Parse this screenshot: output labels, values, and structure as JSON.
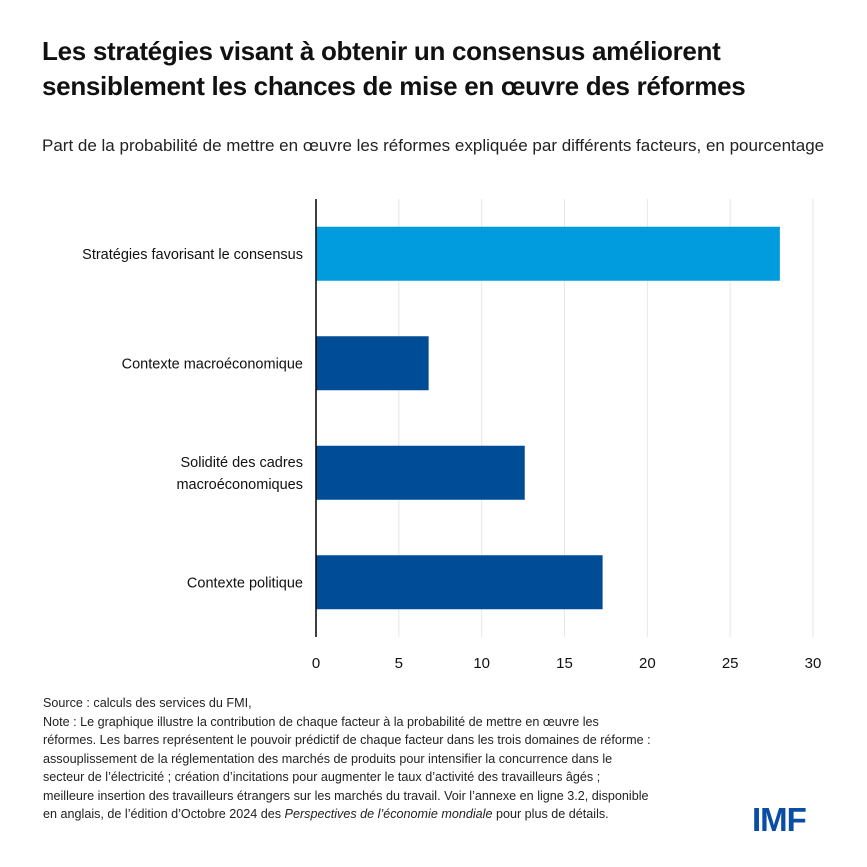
{
  "header": {
    "title": "Les stratégies visant à obtenir un consensus améliorent sensiblement les chances de mise en œuvre des réformes",
    "subtitle": "Part de la probabilité de mettre en œuvre les réformes expliquée par différents facteurs, en pourcentage"
  },
  "chart_data": {
    "type": "bar",
    "orientation": "horizontal",
    "title": "Les stratégies visant à obtenir un consensus améliorent sensiblement les chances de mise en œuvre des réformes",
    "subtitle": "Part de la probabilité de mettre en œuvre les réformes expliquée par différents facteurs, en pourcentage",
    "categories": [
      "Stratégies favorisant le consensus",
      "Contexte macroéconomique",
      "Solidité des cadres macroéconomiques",
      "Contexte politique"
    ],
    "category_lines": [
      [
        "Stratégies favorisant le consensus"
      ],
      [
        "Contexte macroéconomique"
      ],
      [
        "Solidité des cadres",
        "macroéconomiques"
      ],
      [
        "Contexte politique"
      ]
    ],
    "values": [
      28.0,
      6.8,
      12.6,
      17.3
    ],
    "colors": [
      "#009cde",
      "#004c97",
      "#004c97",
      "#004c97"
    ],
    "xlabel": "",
    "ylabel": "",
    "xlim": [
      0,
      30
    ],
    "xticks": [
      0,
      5,
      10,
      15,
      20,
      25,
      30
    ],
    "grid": true,
    "legend": "none"
  },
  "footer": {
    "source": "Source : calculs des services du FMI,",
    "note_lines": [
      "Note : Le graphique illustre la contribution de chaque facteur à la probabilité de mettre en œuvre les",
      "réformes. Les barres représentent le pouvoir prédictif de chaque facteur dans les trois domaines de réforme :",
      "assouplissement de la réglementation des marchés de produits pour intensifier la concurrence dans le",
      "secteur de l’électricité ; création d’incitations pour augmenter le taux d’activité des travailleurs âgés ;",
      "meilleure insertion des travailleurs étrangers sur les marchés du travail. Voir l’annexe en ligne 3.2, disponible"
    ],
    "last_line_before": "en anglais, de l’édition d’Octobre 2024 des ",
    "last_line_italic": "Perspectives de l’économie mondiale",
    "last_line_after": " pour plus de détails.",
    "logo": "IMF"
  }
}
